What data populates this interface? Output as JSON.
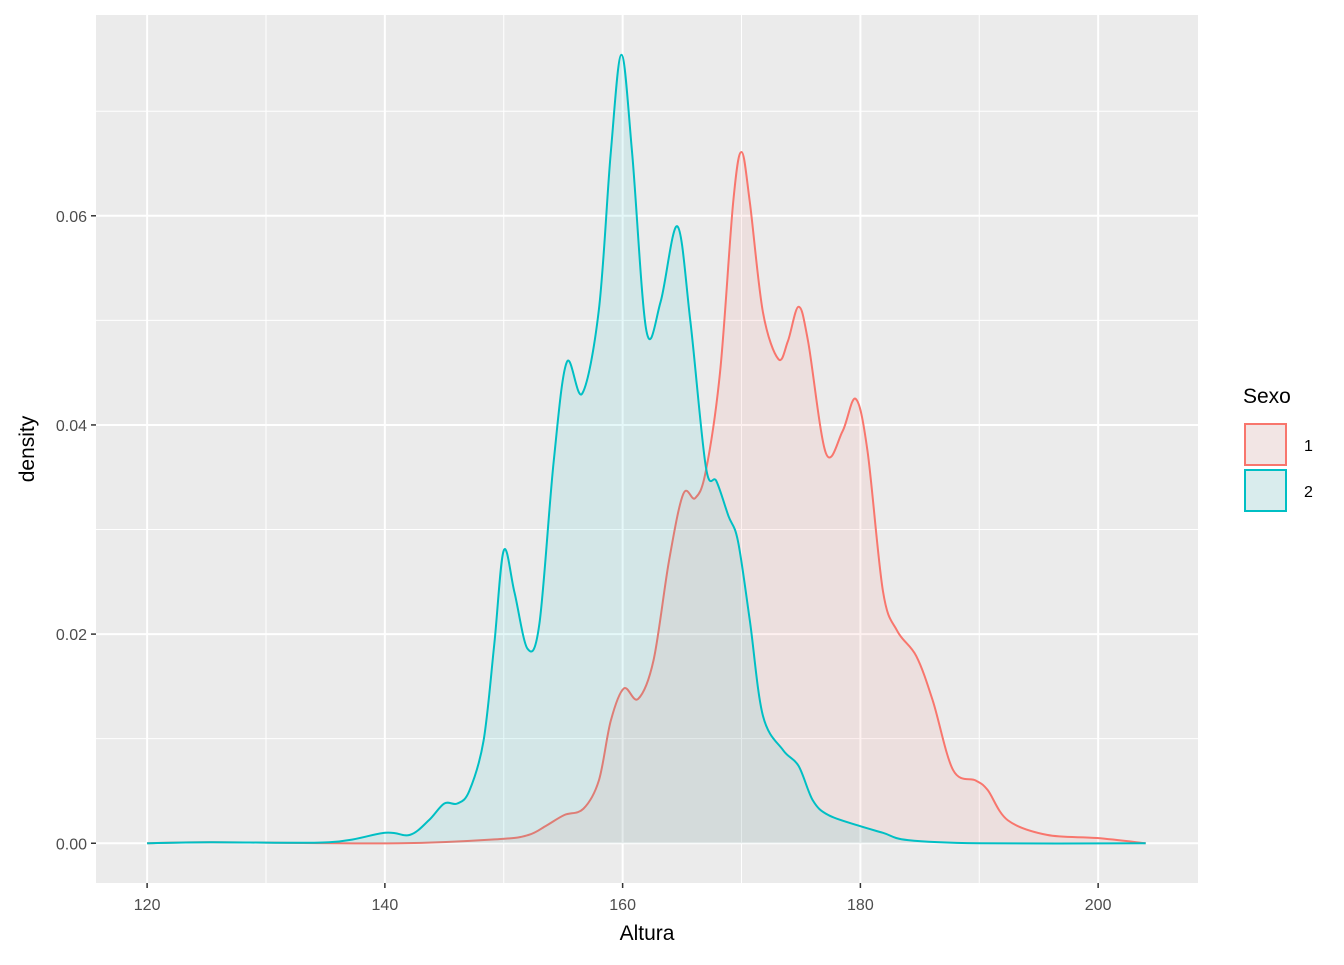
{
  "chart_data": {
    "type": "area",
    "subtype": "density",
    "xlabel": "Altura",
    "ylabel": "density",
    "xlim": [
      115.7,
      208.4
    ],
    "ylim": [
      -0.0038,
      0.0792
    ],
    "x_ticks": [
      120,
      140,
      160,
      180,
      200
    ],
    "x_tick_labels": [
      "120",
      "140",
      "160",
      "180",
      "200"
    ],
    "y_ticks": [
      0,
      0.02,
      0.04,
      0.06
    ],
    "y_tick_labels": [
      "0.00",
      "0.02",
      "0.04",
      "0.06"
    ],
    "grid": true,
    "legend": {
      "title": "Sexo",
      "position": "right"
    },
    "series": [
      {
        "name": "1",
        "color": "#F8766D",
        "fill_alpha": 0.1,
        "x": [
          120,
          125.3,
          141.2,
          149.6,
          152.1,
          153.6,
          155.1,
          156.7,
          158,
          159,
          160.1,
          161.3,
          162.6,
          163.9,
          165.1,
          166.1,
          167,
          168.2,
          169.3,
          170,
          170.7,
          171.8,
          173.1,
          173.9,
          174.8,
          175.6,
          177.1,
          178.5,
          179.6,
          180.6,
          181.9,
          183.1,
          184.7,
          186.1,
          187.8,
          189.7,
          190.7,
          192.4,
          195.7,
          199.9,
          204
        ],
        "y": [
          0,
          0.0001,
          0,
          0.0004,
          0.0008,
          0.0017,
          0.0027,
          0.0033,
          0.006,
          0.0117,
          0.0148,
          0.0138,
          0.0175,
          0.027,
          0.0334,
          0.033,
          0.0356,
          0.0451,
          0.0613,
          0.0661,
          0.0613,
          0.0508,
          0.0463,
          0.048,
          0.0513,
          0.048,
          0.0373,
          0.0394,
          0.0425,
          0.0375,
          0.0241,
          0.0203,
          0.0179,
          0.0136,
          0.007,
          0.006,
          0.0051,
          0.0022,
          0.0008,
          0.0005,
          0
        ]
      },
      {
        "name": "2",
        "color": "#00BFC4",
        "fill_alpha": 0.1,
        "x": [
          120,
          125.3,
          135.3,
          140,
          142.1,
          143.7,
          145,
          146.1,
          147.1,
          148.3,
          149.2,
          150,
          150.9,
          152,
          153,
          154.2,
          155.3,
          156.6,
          158,
          159,
          159.9,
          160.8,
          162,
          163.2,
          164.6,
          165.7,
          167,
          167.9,
          168.9,
          169.7,
          170.7,
          171.8,
          173.5,
          174.8,
          176,
          177.3,
          179.8,
          181.9,
          184,
          190,
          204
        ],
        "y": [
          0,
          0.0001,
          0.0001,
          0.001,
          0.0008,
          0.0022,
          0.0038,
          0.0038,
          0.005,
          0.0098,
          0.019,
          0.028,
          0.024,
          0.0186,
          0.021,
          0.0365,
          0.046,
          0.043,
          0.051,
          0.066,
          0.0754,
          0.066,
          0.049,
          0.0518,
          0.059,
          0.0499,
          0.036,
          0.0346,
          0.0313,
          0.0289,
          0.0213,
          0.0122,
          0.0089,
          0.0074,
          0.0041,
          0.0027,
          0.0017,
          0.001,
          0.0003,
          0,
          0
        ]
      }
    ]
  }
}
